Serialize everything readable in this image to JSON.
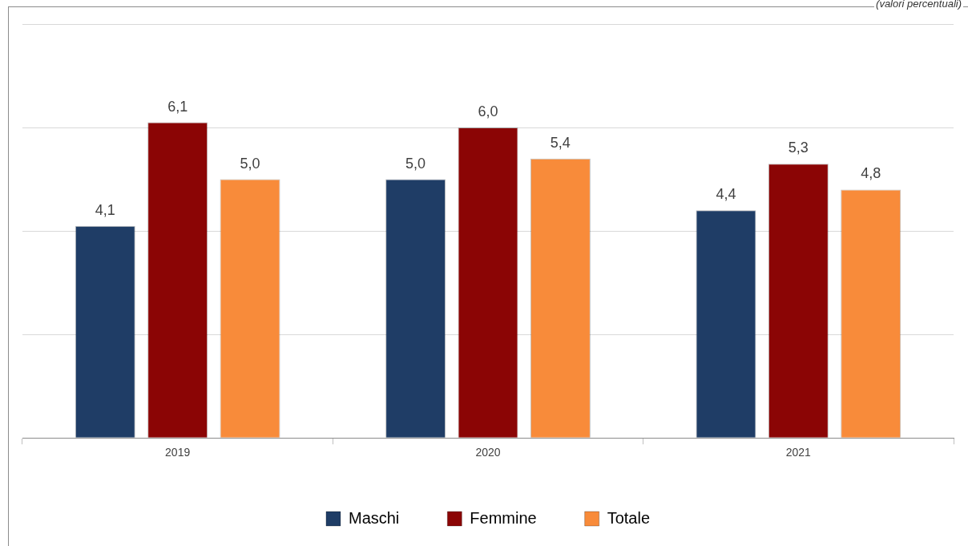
{
  "chart_data": {
    "type": "bar",
    "annotations": [
      "(valori percentuali)"
    ],
    "categories": [
      "2019",
      "2020",
      "2021"
    ],
    "series": [
      {
        "name": "Maschi",
        "color": "#1f3d66",
        "values": [
          4.1,
          5.0,
          4.4
        ],
        "value_labels": [
          "4,1",
          "5,0",
          "4,4"
        ]
      },
      {
        "name": "Femmine",
        "color": "#8b0505",
        "values": [
          6.1,
          6.0,
          5.3
        ],
        "value_labels": [
          "6,1",
          "6,0",
          "5,3"
        ]
      },
      {
        "name": "Totale",
        "color": "#f88b3a",
        "values": [
          5.0,
          5.4,
          4.8
        ],
        "value_labels": [
          "5,0",
          "5,4",
          "4,8"
        ]
      }
    ],
    "grid": "y",
    "tick_labels": "x",
    "legend": "bottom"
  }
}
